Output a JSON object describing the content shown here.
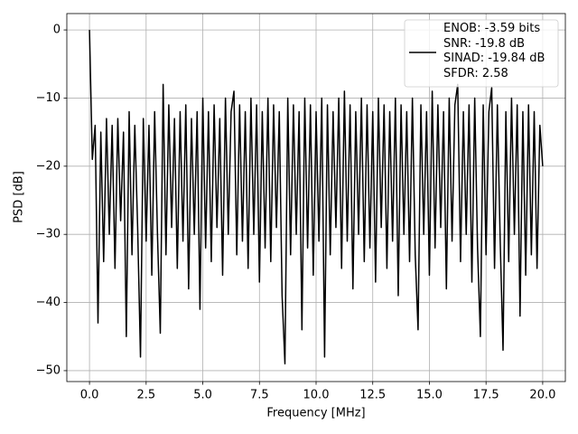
{
  "chart_data": {
    "type": "line",
    "xlabel": "Frequency [MHz]",
    "ylabel": "PSD [dB]",
    "xlim": [
      -1,
      21
    ],
    "ylim": [
      -51.6,
      2.4
    ],
    "xticks": [
      {
        "value": 0,
        "label": "0.0"
      },
      2.5,
      {
        "value": 5,
        "label": "5.0"
      },
      7.5,
      {
        "value": 10,
        "label": "10.0"
      },
      12.5,
      {
        "value": 15,
        "label": "15.0"
      },
      17.5,
      {
        "value": 20,
        "label": "20.0"
      }
    ],
    "yticks": [
      {
        "value": 0,
        "label": "0"
      },
      {
        "value": -10,
        "label": "−10"
      },
      {
        "value": -20,
        "label": "−20"
      },
      {
        "value": -30,
        "label": "−30"
      },
      {
        "value": -40,
        "label": "−40"
      },
      {
        "value": -50,
        "label": "−50"
      }
    ],
    "grid": true,
    "legend": "upper right",
    "x": [
      0,
      0.125,
      0.25,
      0.375,
      0.5,
      0.625,
      0.75,
      0.875,
      1,
      1.125,
      1.25,
      1.375,
      1.5,
      1.625,
      1.75,
      1.875,
      2,
      2.125,
      2.25,
      2.375,
      2.5,
      2.625,
      2.75,
      2.875,
      3,
      3.125,
      3.25,
      3.375,
      3.5,
      3.625,
      3.75,
      3.875,
      4,
      4.125,
      4.25,
      4.375,
      4.5,
      4.625,
      4.75,
      4.875,
      5,
      5.125,
      5.25,
      5.375,
      5.5,
      5.625,
      5.75,
      5.875,
      6,
      6.125,
      6.25,
      6.375,
      6.5,
      6.625,
      6.75,
      6.875,
      7,
      7.125,
      7.25,
      7.375,
      7.5,
      7.625,
      7.75,
      7.875,
      8,
      8.125,
      8.25,
      8.375,
      8.5,
      8.625,
      8.75,
      8.875,
      9,
      9.125,
      9.25,
      9.375,
      9.5,
      9.625,
      9.75,
      9.875,
      10,
      10.125,
      10.25,
      10.375,
      10.5,
      10.625,
      10.75,
      10.875,
      11,
      11.125,
      11.25,
      11.375,
      11.5,
      11.625,
      11.75,
      11.875,
      12,
      12.125,
      12.25,
      12.375,
      12.5,
      12.625,
      12.75,
      12.875,
      13,
      13.125,
      13.25,
      13.375,
      13.5,
      13.625,
      13.75,
      13.875,
      14,
      14.125,
      14.25,
      14.375,
      14.5,
      14.625,
      14.75,
      14.875,
      15,
      15.125,
      15.25,
      15.375,
      15.5,
      15.625,
      15.75,
      15.875,
      16,
      16.125,
      16.25,
      16.375,
      16.5,
      16.625,
      16.75,
      16.875,
      17,
      17.125,
      17.25,
      17.375,
      17.5,
      17.625,
      17.75,
      17.875,
      18,
      18.125,
      18.25,
      18.375,
      18.5,
      18.625,
      18.75,
      18.875,
      19,
      19.125,
      19.25,
      19.375,
      19.5,
      19.625,
      19.75,
      19.875,
      20
    ],
    "series": [
      {
        "name": "ENOB: -3.59 bits\nSNR: -19.8 dB\nSINAD: -19.84 dB\nSFDR: 2.58",
        "color": "#000000",
        "values": [
          0,
          -19,
          -14,
          -43,
          -15,
          -34,
          -13,
          -30,
          -14,
          -35,
          -13,
          -28,
          -15,
          -45,
          -12,
          -33,
          -14,
          -29,
          -48,
          -13,
          -31,
          -14,
          -36,
          -12,
          -30,
          -44.5,
          -8,
          -33,
          -11,
          -29,
          -13,
          -35,
          -12,
          -31,
          -11,
          -38,
          -13,
          -30,
          -12,
          -41,
          -10,
          -32,
          -12,
          -34,
          -11,
          -29,
          -13,
          -36,
          -10,
          -30,
          -12,
          -9,
          -33,
          -11,
          -31,
          -12,
          -35,
          -10,
          -30,
          -11,
          -37,
          -12,
          -32,
          -10,
          -34,
          -11,
          -29,
          -12,
          -39,
          -49,
          -10,
          -33,
          -11,
          -30,
          -12,
          -44,
          -10,
          -32,
          -11,
          -36,
          -12,
          -31,
          -10,
          -48,
          -11,
          -33,
          -12,
          -29,
          -10,
          -35,
          -9,
          -31,
          -11,
          -38,
          -12,
          -30,
          -10,
          -34,
          -11,
          -32,
          -12,
          -37,
          -10,
          -29,
          -11,
          -35,
          -12,
          -31,
          -10,
          -39,
          -11,
          -30,
          -12,
          -34,
          -10,
          -33,
          -44,
          -11,
          -30,
          -12,
          -36,
          -9,
          -32,
          -11,
          -29,
          -12,
          -38,
          -10,
          -31,
          -11,
          -8,
          -34,
          -12,
          -30,
          -11,
          -37,
          -10,
          -32,
          -45,
          -11,
          -33,
          -12,
          -8.5,
          -35,
          -11,
          -31,
          -47,
          -12,
          -34,
          -10,
          -30,
          -11,
          -42,
          -12,
          -36,
          -11,
          -33,
          -12,
          -35,
          -14,
          -20
        ]
      }
    ]
  }
}
